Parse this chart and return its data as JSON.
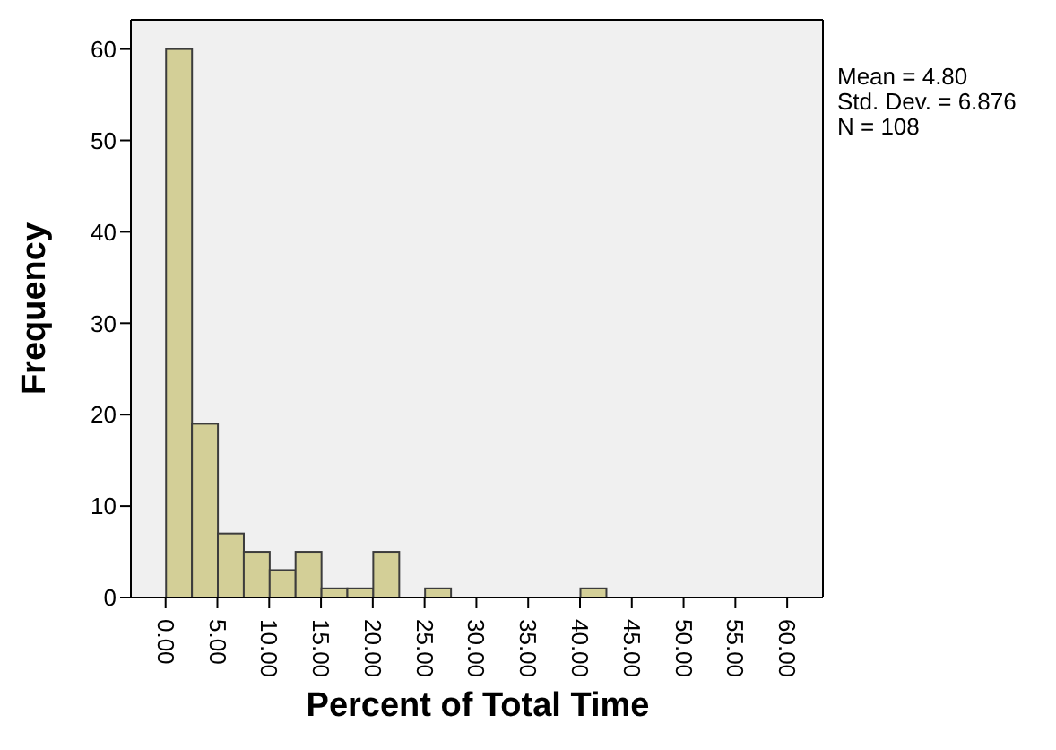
{
  "chart_data": {
    "type": "histogram",
    "xlabel": "Percent of Total Time",
    "ylabel": "Frequency",
    "bins": [
      0,
      2.5,
      5,
      7.5,
      10,
      12.5,
      15,
      17.5,
      20,
      22.5,
      25,
      27.5,
      30,
      32.5,
      35,
      37.5,
      40,
      42.5
    ],
    "values": [
      60,
      19,
      7,
      5,
      3,
      5,
      1,
      1,
      5,
      0,
      1,
      0,
      0,
      0,
      0,
      0,
      1
    ],
    "color": "#d3cf97",
    "xlim": [
      -3.35,
      63.45
    ],
    "xticks": [
      {
        "value": 0,
        "label": "0.00"
      },
      {
        "value": 5,
        "label": "5.00"
      },
      {
        "value": 10,
        "label": "10.00"
      },
      {
        "value": 15,
        "label": "15.00"
      },
      {
        "value": 20,
        "label": "20.00"
      },
      {
        "value": 25,
        "label": "25.00"
      },
      {
        "value": 30,
        "label": "30.00"
      },
      {
        "value": 35,
        "label": "35.00"
      },
      {
        "value": 40,
        "label": "40.00"
      },
      {
        "value": 45,
        "label": "45.00"
      },
      {
        "value": 50,
        "label": "50.00"
      },
      {
        "value": 55,
        "label": "55.00"
      },
      {
        "value": 60,
        "label": "60.00"
      }
    ],
    "ylim": [
      0,
      63.2
    ],
    "yticks": [
      0,
      10,
      20,
      30,
      40,
      50,
      60
    ],
    "annotations": [
      "Mean = 4.80",
      "Std. Dev. = 6.876",
      "N = 108"
    ]
  }
}
